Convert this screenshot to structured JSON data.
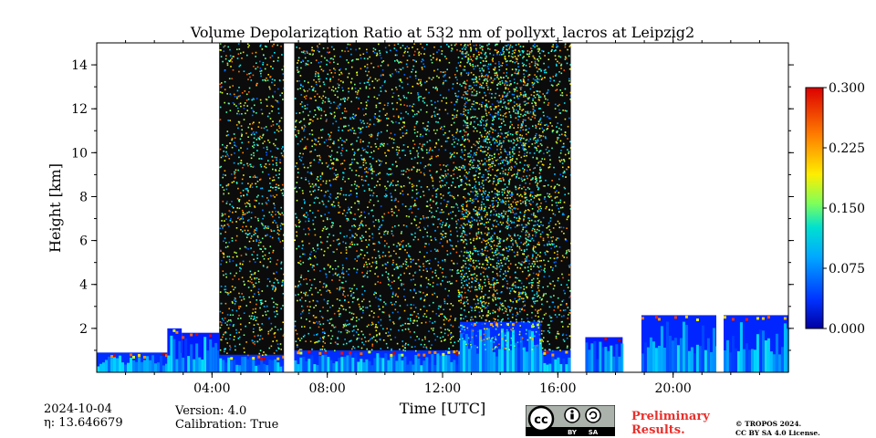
{
  "chart_data": {
    "type": "heatmap",
    "title": "Volume Depolarization Ratio at 532 nm of pollyxt_lacros at Leipzig2",
    "xlabel": "Time [UTC]",
    "ylabel": "Height [km]",
    "xlim_hours": [
      0,
      24
    ],
    "ylim_km": [
      0,
      15
    ],
    "x_ticks": [
      {
        "hour": 4,
        "label": "04:00"
      },
      {
        "hour": 8,
        "label": "08:00"
      },
      {
        "hour": 12,
        "label": "12:00"
      },
      {
        "hour": 16,
        "label": "16:00"
      },
      {
        "hour": 20,
        "label": "20:00"
      }
    ],
    "y_ticks": [
      {
        "km": 2,
        "label": "2"
      },
      {
        "km": 4,
        "label": "4"
      },
      {
        "km": 6,
        "label": "6"
      },
      {
        "km": 8,
        "label": "8"
      },
      {
        "km": 10,
        "label": "10"
      },
      {
        "km": 12,
        "label": "12"
      },
      {
        "km": 14,
        "label": "14"
      }
    ],
    "colorbar": {
      "range": [
        0.0,
        0.3
      ],
      "ticks": [
        "0.000",
        "0.075",
        "0.150",
        "0.225",
        "0.300"
      ],
      "colormap": "jet"
    },
    "segments_hours": [
      {
        "start": 0.0,
        "end": 2.45,
        "layer_top_km": 0.9,
        "layer_value": 0.03,
        "noise_top_km": 0.0
      },
      {
        "start": 2.45,
        "end": 2.95,
        "layer_top_km": 2.0,
        "layer_value": 0.02,
        "noise_top_km": 0.0
      },
      {
        "start": 2.95,
        "end": 4.25,
        "layer_top_km": 1.8,
        "layer_value": 0.02,
        "noise_top_km": 0.0
      },
      {
        "start": 4.25,
        "end": 6.5,
        "layer_top_km": 0.8,
        "layer_value": 0.03,
        "noise_top_km": 15.0
      },
      {
        "start": 6.85,
        "end": 16.45,
        "layer_top_km": 1.0,
        "layer_value": 0.03,
        "noise_top_km": 15.0
      },
      {
        "start": 12.6,
        "end": 15.4,
        "layer_top_km": 2.3,
        "layer_value": 0.03,
        "noise_top_km": 15.0
      },
      {
        "start": 16.95,
        "end": 18.25,
        "layer_top_km": 1.6,
        "layer_value": 0.02,
        "noise_top_km": 0.0
      },
      {
        "start": 18.9,
        "end": 21.5,
        "layer_top_km": 2.6,
        "layer_value": 0.025,
        "noise_top_km": 0.0
      },
      {
        "start": 21.75,
        "end": 24.0,
        "layer_top_km": 2.6,
        "layer_value": 0.025,
        "noise_top_km": 0.0
      }
    ],
    "gaps_hours": [
      [
        6.5,
        6.85
      ],
      [
        16.45,
        16.95
      ],
      [
        21.5,
        21.75
      ]
    ]
  },
  "footer": {
    "date": "2024-10-04",
    "eta": "η: 13.646679",
    "version": "Version: 4.0",
    "calibration": "Calibration: True",
    "preliminary_line1": "Preliminary",
    "preliminary_line2": "Results.",
    "copyright_line1": "© TROPOS 2024.",
    "copyright_line2": "CC BY SA 4.0 License.",
    "badge_by": "BY",
    "badge_sa": "SA"
  }
}
